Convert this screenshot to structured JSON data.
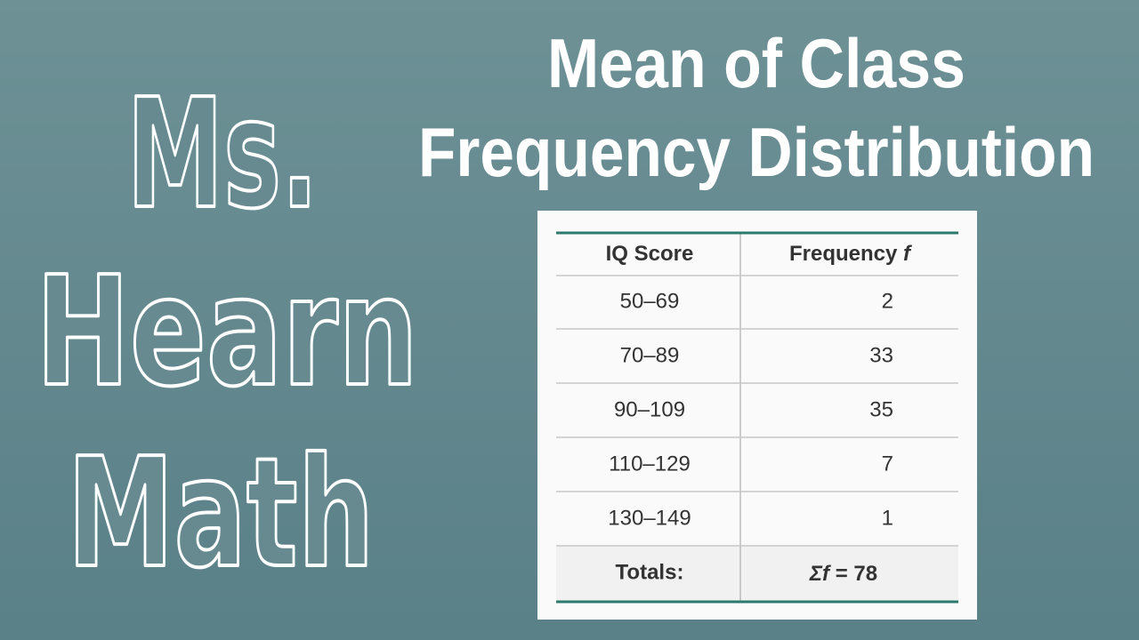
{
  "brand": {
    "lines": [
      "Ms.",
      "Hearn",
      "Math"
    ]
  },
  "header": {
    "title": [
      "Mean of Class",
      "Frequency Distribution"
    ]
  },
  "table": {
    "columns": [
      {
        "label": "IQ Score"
      },
      {
        "label": "Frequency",
        "symbol": "f"
      }
    ],
    "rows": [
      [
        "50–69",
        2
      ],
      [
        "70–89",
        33
      ],
      [
        "90–109",
        35
      ],
      [
        "110–129",
        7
      ],
      [
        "130–149",
        1
      ]
    ],
    "totals": {
      "label": "Totals:",
      "symbol": "Σf",
      "value": "= 78"
    }
  }
}
